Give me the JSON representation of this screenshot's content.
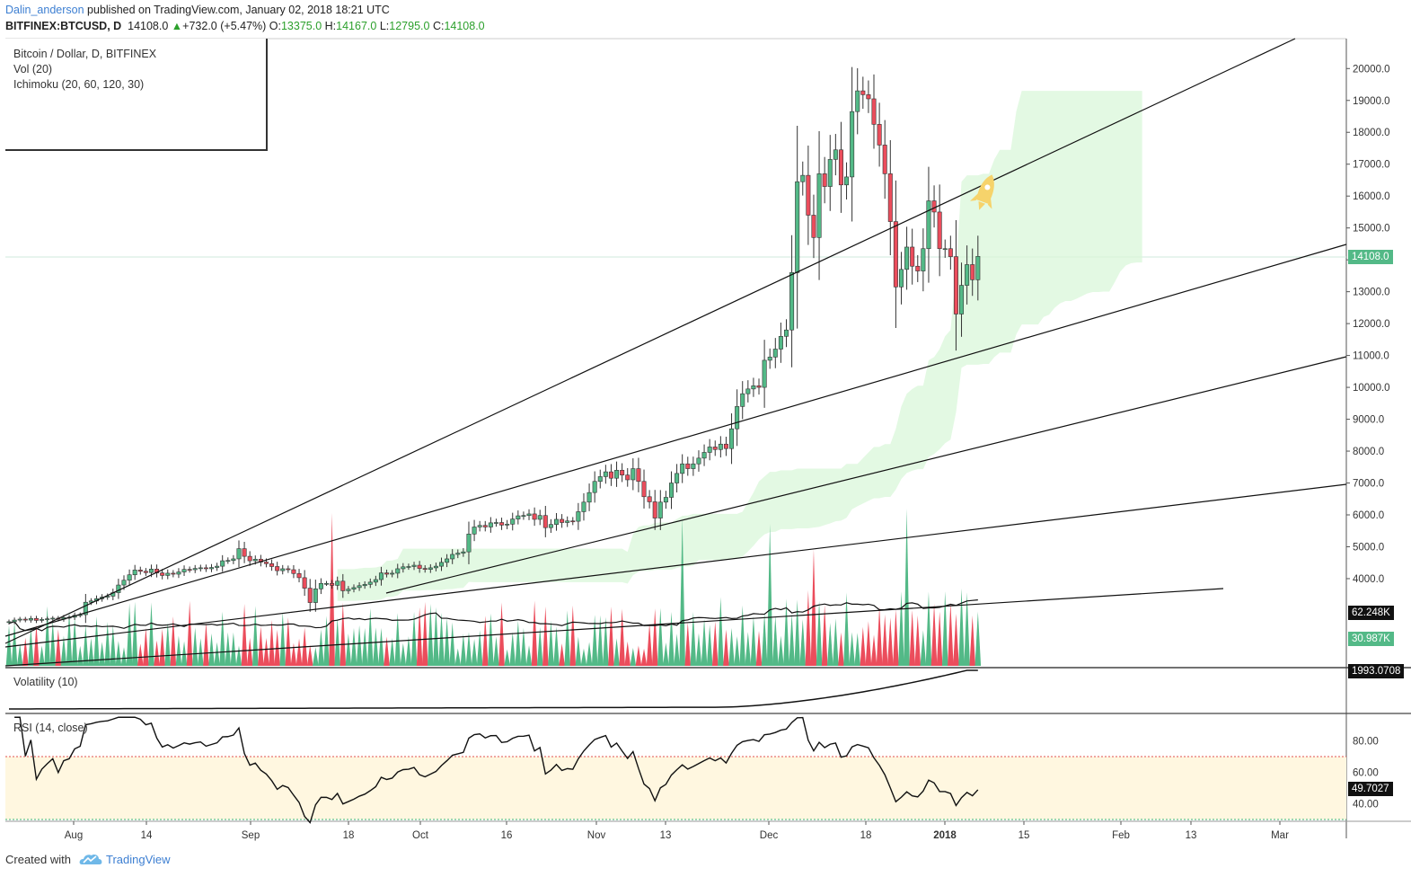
{
  "header": {
    "user": "Dalin_anderson",
    "published": "published on TradingView.com, January 02, 2018 18:21 UTC",
    "symbol": "BITFINEX:BTCUSD, D",
    "last": "14108.0",
    "change": "+732.0 (+5.47%)",
    "o_label": "O:",
    "o": "13375.0",
    "h_label": "H:",
    "h": "14167.0",
    "l_label": "L:",
    "l": "12795.0",
    "c_label": "C:",
    "c": "14108.0"
  },
  "legend": {
    "line1": "Bitcoin / Dollar, D, BITFINEX",
    "line2": "Vol (20)",
    "line3": "Ichimoku (20, 60, 120, 30)"
  },
  "panes": {
    "volatility_title": "Volatility (10)",
    "rsi_title": "RSI (14, close)"
  },
  "tags": {
    "price": "14108.0",
    "vol_ma": "62.248K",
    "vol": "30.987K",
    "volatility": "1993.0708",
    "rsi": "49.7027"
  },
  "footer": {
    "created": "Created with",
    "brand": "TradingView"
  },
  "colors": {
    "up": "#53b987",
    "down": "#eb4d5c",
    "cloud": "#d9f7d9",
    "rsi_band": "#fff7e0",
    "link": "#3d7fd2"
  },
  "chart_data": {
    "type": "candlestick",
    "price_axis": {
      "ticks": [
        4000,
        5000,
        6000,
        7000,
        8000,
        9000,
        10000,
        11000,
        12000,
        13000,
        14000,
        15000,
        16000,
        17000,
        18000,
        19000,
        20000
      ],
      "labels": [
        "4000.0",
        "5000.0",
        "6000.0",
        "7000.0",
        "8000.0",
        "9000.0",
        "10000.0",
        "11000.0",
        "12000.0",
        "13000.0",
        "14000.0",
        "15000.0",
        "16000.0",
        "17000.0",
        "18000.0",
        "19000.0",
        "20000.0"
      ]
    },
    "time_axis": [
      "Aug",
      "14",
      "Sep",
      "18",
      "Oct",
      "16",
      "Nov",
      "13",
      "Dec",
      "18",
      "2018",
      "15",
      "Feb",
      "13",
      "Mar"
    ],
    "rsi_axis": {
      "ticks": [
        40,
        60,
        80
      ],
      "labels": [
        "40.00",
        "60.00",
        "80.00"
      ],
      "overbought": 70,
      "oversold": 30
    },
    "closes": [
      2650,
      2700,
      2730,
      2700,
      2750,
      2690,
      2720,
      2740,
      2760,
      2730,
      2780,
      2790,
      2850,
      2870,
      3260,
      3300,
      3370,
      3420,
      3450,
      3560,
      3800,
      3950,
      4120,
      4270,
      4230,
      4190,
      4300,
      4180,
      4100,
      4170,
      4140,
      4210,
      4290,
      4280,
      4320,
      4340,
      4310,
      4350,
      4390,
      4560,
      4570,
      4620,
      4940,
      4700,
      4560,
      4610,
      4520,
      4470,
      4380,
      4250,
      4310,
      4280,
      4160,
      4030,
      3700,
      3250,
      3680,
      3850,
      3850,
      3790,
      3920,
      3620,
      3670,
      3720,
      3780,
      3820,
      3890,
      3970,
      4180,
      4140,
      4170,
      4310,
      4370,
      4380,
      4420,
      4320,
      4290,
      4340,
      4390,
      4510,
      4620,
      4760,
      4800,
      4840,
      5400,
      5620,
      5670,
      5620,
      5750,
      5760,
      5680,
      5710,
      5870,
      5970,
      5980,
      6030,
      5860,
      5980,
      5600,
      5700,
      5860,
      5760,
      5810,
      5800,
      6100,
      6400,
      6700,
      7050,
      7200,
      7350,
      7150,
      7400,
      7250,
      7100,
      7450,
      7050,
      6570,
      6410,
      5900,
      6400,
      6550,
      7000,
      7300,
      7600,
      7450,
      7600,
      7780,
      7960,
      8130,
      8050,
      8220,
      8080,
      8700,
      9400,
      9800,
      9950,
      10050,
      10000,
      10850,
      10950,
      11200,
      11600,
      11800,
      13600,
      16450,
      16650,
      15400,
      14700,
      16700,
      16300,
      17150,
      17450,
      16350,
      16600,
      18650,
      19300,
      19180,
      19050,
      18250,
      17600,
      16700,
      15200,
      13150,
      13700,
      14400,
      13800,
      13650,
      14350,
      15850,
      15500,
      14350,
      14350,
      14100,
      12300,
      13200,
      13850,
      13375,
      14108
    ],
    "volume_ma_label": "Vol (20)",
    "ichimoku_label": "Ichimoku (20, 60, 120, 30)"
  }
}
